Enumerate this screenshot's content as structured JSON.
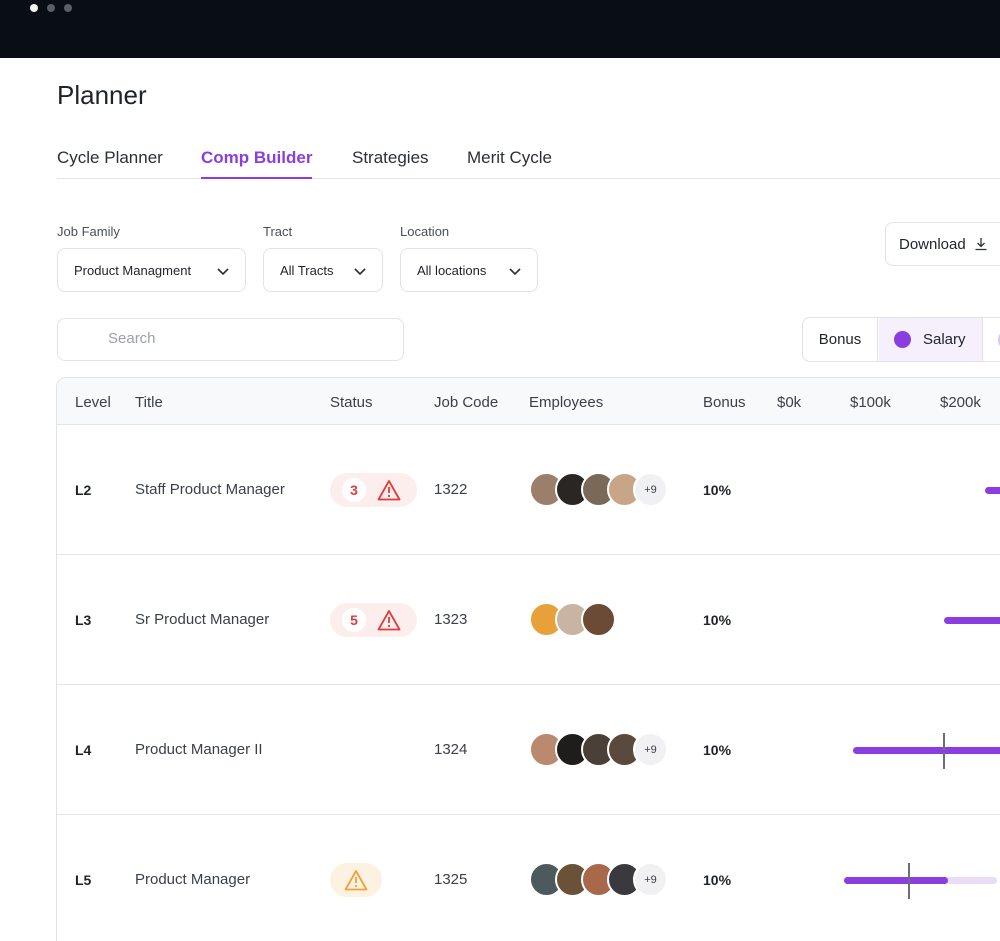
{
  "window": {
    "title": "Planner"
  },
  "tabs": [
    {
      "label": "Cycle Planner",
      "active": false
    },
    {
      "label": "Comp Builder",
      "active": true
    },
    {
      "label": "Strategies",
      "active": false
    },
    {
      "label": "Merit Cycle",
      "active": false
    }
  ],
  "filters": {
    "job_family": {
      "label": "Job Family",
      "value": "Product Managment"
    },
    "tract": {
      "label": "Tract",
      "value": "All Tracts"
    },
    "location": {
      "label": "Location",
      "value": "All locations"
    }
  },
  "download": {
    "label": "Download"
  },
  "search": {
    "placeholder": "Search"
  },
  "view_toggle": {
    "bonus": "Bonus",
    "salary": "Salary",
    "selected": "Salary"
  },
  "table": {
    "headers": {
      "level": "Level",
      "title": "Title",
      "status": "Status",
      "job_code": "Job Code",
      "employees": "Employees",
      "bonus": "Bonus",
      "scale_0": "$0k",
      "scale_1": "$100k",
      "scale_2": "$200k"
    },
    "rows": [
      {
        "level": "L2",
        "title": "Staff Product Manager",
        "status": {
          "type": "error",
          "count": "3"
        },
        "job_code": "1322",
        "employees": {
          "more": "+9"
        },
        "bonus": "10%"
      },
      {
        "level": "L3",
        "title": "Sr Product Manager",
        "status": {
          "type": "error",
          "count": "5"
        },
        "job_code": "1323",
        "employees": {
          "more": ""
        },
        "bonus": "10%"
      },
      {
        "level": "L4",
        "title": "Product Manager II",
        "status": {
          "type": "none",
          "count": ""
        },
        "job_code": "1324",
        "employees": {
          "more": "+9"
        },
        "bonus": "10%"
      },
      {
        "level": "L5",
        "title": "Product Manager",
        "status": {
          "type": "warning",
          "count": ""
        },
        "job_code": "1325",
        "employees": {
          "more": "+9"
        },
        "bonus": "10%"
      }
    ]
  },
  "colors": {
    "accent": "#8a3ee0",
    "accent_light": "#e8dcf8",
    "error": "#e13a3a",
    "warning": "#f0a23a"
  }
}
